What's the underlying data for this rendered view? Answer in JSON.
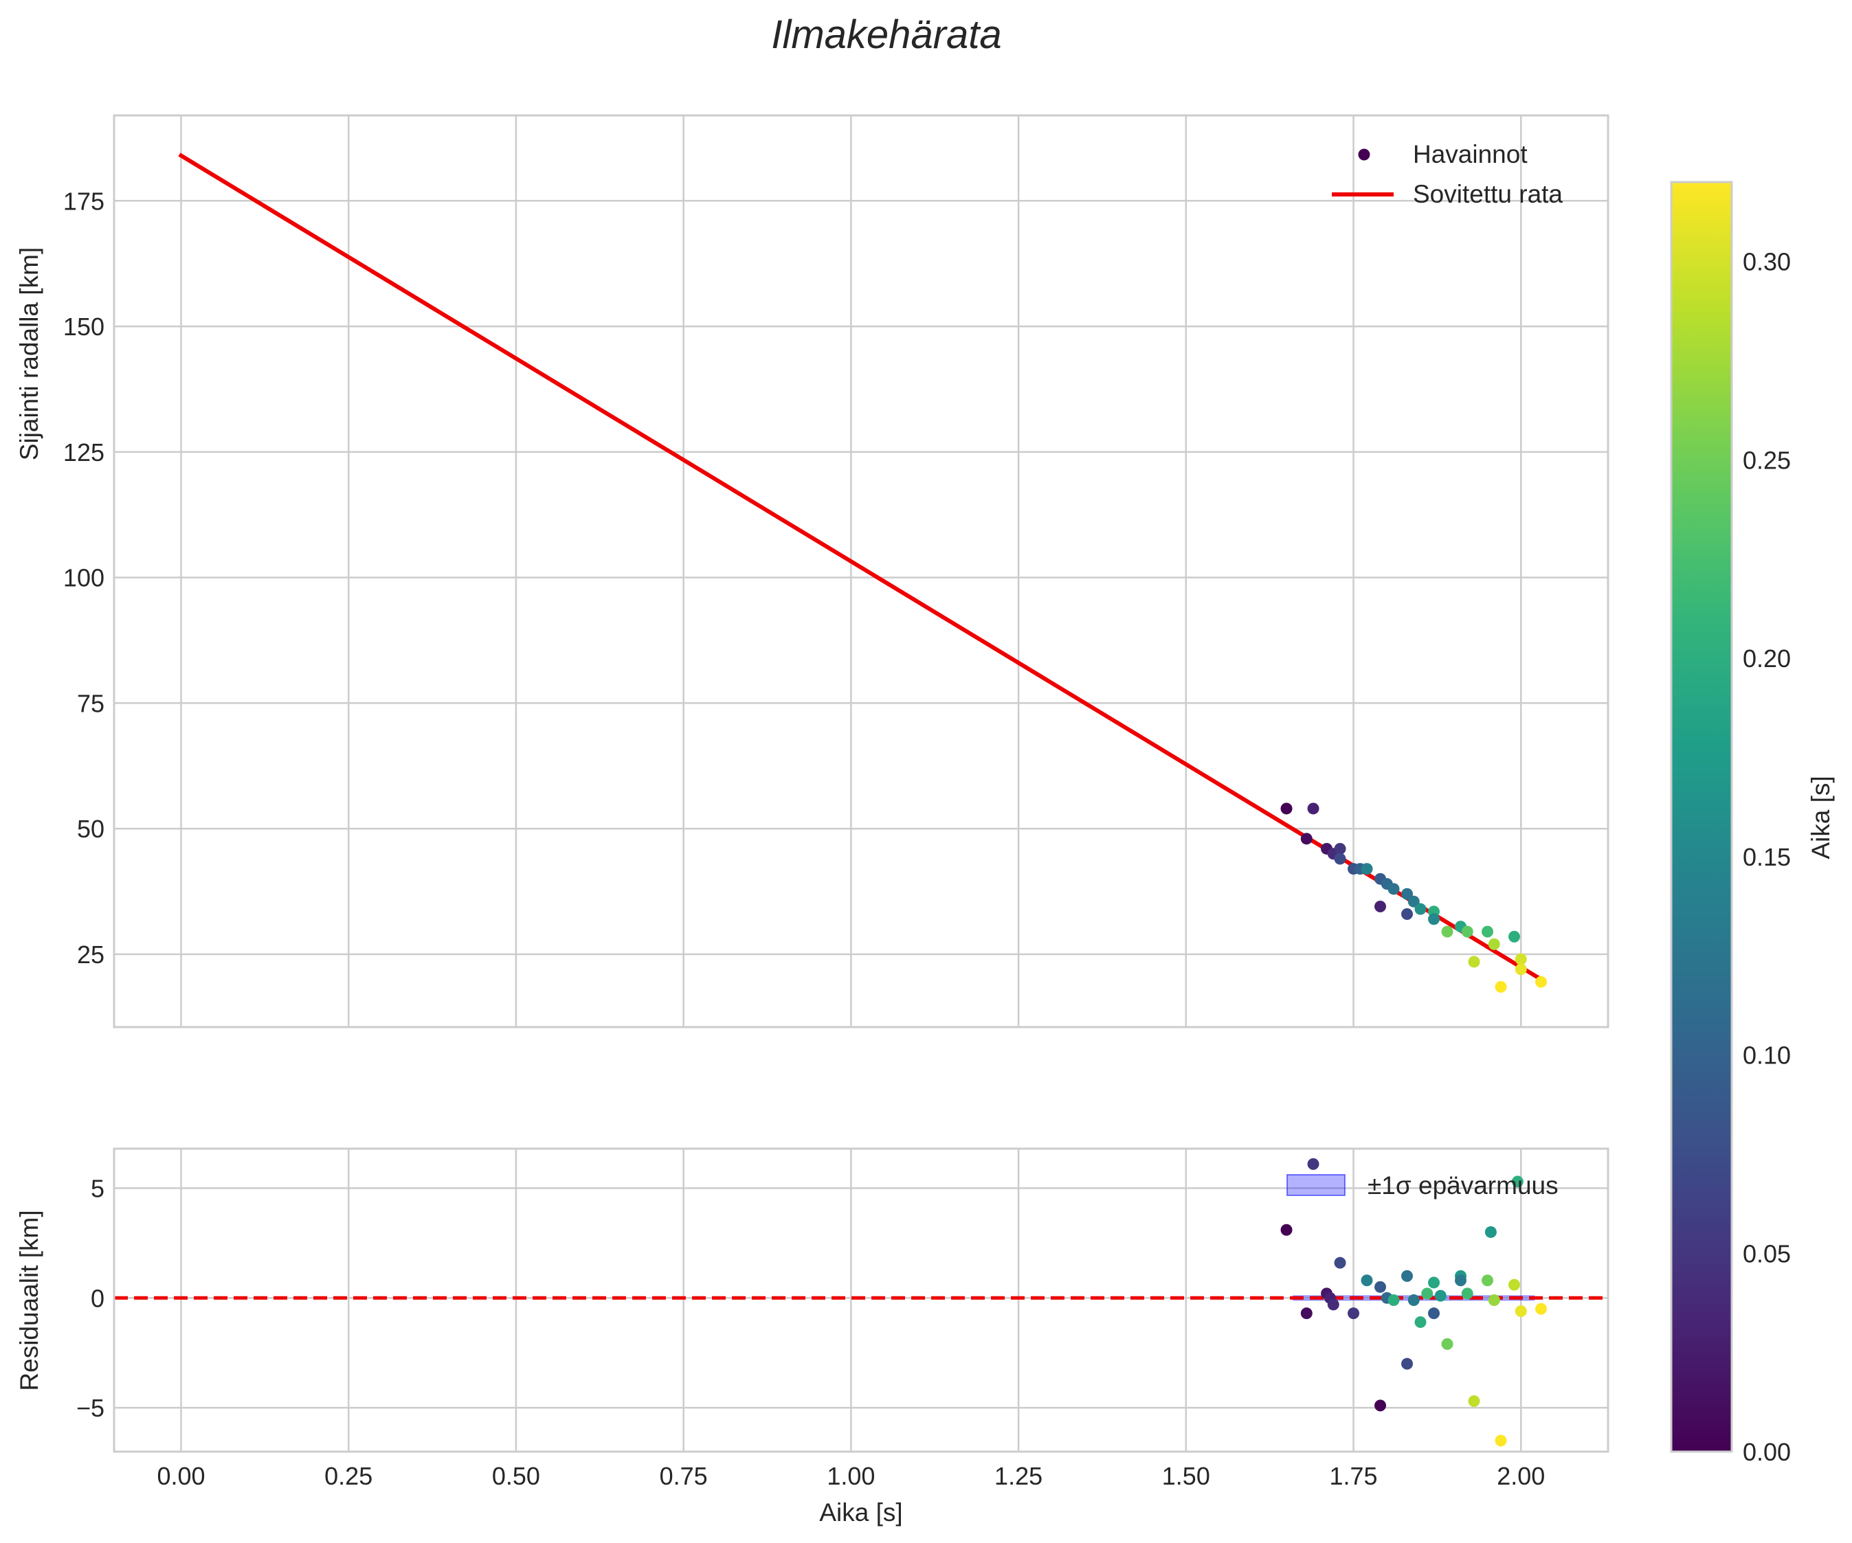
{
  "chart_data": {
    "type": "scatter",
    "title": "Ilmakehärata",
    "xlabel": "Aika [s]",
    "xlim": [
      -0.1,
      2.13
    ],
    "xticks": [
      0.0,
      0.25,
      0.5,
      0.75,
      1.0,
      1.25,
      1.5,
      1.75,
      2.0
    ],
    "xtick_labels": [
      "0.00",
      "0.25",
      "0.50",
      "0.75",
      "1.00",
      "1.25",
      "1.50",
      "1.75",
      "2.00"
    ],
    "grid": true,
    "panels": [
      {
        "name": "trajectory",
        "ylabel": "Sijainti radalla [km]",
        "ylim": [
          10.5,
          192
        ],
        "yticks": [
          25,
          50,
          75,
          100,
          125,
          150,
          175
        ],
        "ytick_labels": [
          "25",
          "50",
          "75",
          "100",
          "125",
          "150",
          "175"
        ],
        "legend": {
          "position": "top-right",
          "entries": [
            "Havainnot",
            "Sovitettu rata"
          ]
        },
        "fit_line": {
          "label": "Sovitettu rata",
          "color": "#ee0000",
          "x": [
            0.0,
            2.03
          ],
          "y": [
            184.0,
            20.0
          ]
        },
        "scatter": {
          "label": "Havainnot",
          "x": [
            1.65,
            1.68,
            1.69,
            1.71,
            1.72,
            1.73,
            1.73,
            1.75,
            1.76,
            1.77,
            1.79,
            1.79,
            1.8,
            1.81,
            1.83,
            1.83,
            1.84,
            1.85,
            1.87,
            1.87,
            1.89,
            1.91,
            1.92,
            1.93,
            1.95,
            1.96,
            1.97,
            1.99,
            2.0,
            2.0,
            2.03
          ],
          "y": [
            54,
            48,
            54,
            46,
            45,
            46,
            44,
            42,
            42,
            42,
            40,
            34.5,
            39,
            38,
            37,
            33,
            35.5,
            34,
            33.5,
            32,
            29.5,
            30.5,
            29.5,
            23.5,
            29.5,
            27,
            18.5,
            28.5,
            24,
            22,
            19.5
          ],
          "c": [
            0.0,
            0.01,
            0.03,
            0.02,
            0.04,
            0.05,
            0.07,
            0.08,
            0.1,
            0.14,
            0.09,
            0.03,
            0.11,
            0.12,
            0.12,
            0.07,
            0.13,
            0.16,
            0.2,
            0.15,
            0.25,
            0.19,
            0.24,
            0.29,
            0.22,
            0.28,
            0.32,
            0.2,
            0.3,
            0.31,
            0.32
          ]
        }
      },
      {
        "name": "residuals",
        "ylabel": "Residuaalit [km]",
        "ylim": [
          -7.0,
          6.8
        ],
        "yticks": [
          -5,
          0,
          5
        ],
        "ytick_labels": [
          "−5",
          "0",
          "5"
        ],
        "legend": {
          "position": "top-right",
          "entries": [
            "±1σ epävarmuus"
          ]
        },
        "zero_line": {
          "y": 0,
          "color": "#ee0000",
          "style": "dashed"
        },
        "band": {
          "label": "±1σ epävarmuus",
          "x": [
            1.66,
            2.02
          ],
          "y": [
            -0.1,
            0.1
          ],
          "color": "#0000ff",
          "alpha": 0.3
        },
        "scatter": {
          "x": [
            1.65,
            1.68,
            1.69,
            1.71,
            1.715,
            1.72,
            1.73,
            1.75,
            1.77,
            1.79,
            1.79,
            1.8,
            1.81,
            1.83,
            1.83,
            1.84,
            1.85,
            1.86,
            1.87,
            1.87,
            1.88,
            1.89,
            1.91,
            1.91,
            1.92,
            1.93,
            1.95,
            1.955,
            1.96,
            1.97,
            1.99,
            1.995,
            2.0,
            2.03
          ],
          "y": [
            3.1,
            -0.7,
            6.1,
            0.2,
            0.0,
            -0.3,
            1.6,
            -0.7,
            0.8,
            0.5,
            -4.9,
            0.0,
            -0.1,
            1.0,
            -3.0,
            -0.1,
            -1.1,
            0.2,
            0.7,
            -0.7,
            0.1,
            -2.1,
            1.0,
            0.8,
            0.2,
            -4.7,
            0.8,
            3.0,
            -0.1,
            -6.5,
            0.6,
            5.3,
            -0.6,
            -0.5
          ],
          "c": [
            0.0,
            0.01,
            0.05,
            0.02,
            0.03,
            0.04,
            0.07,
            0.05,
            0.14,
            0.09,
            0.0,
            0.11,
            0.2,
            0.12,
            0.07,
            0.13,
            0.2,
            0.22,
            0.19,
            0.09,
            0.17,
            0.25,
            0.17,
            0.13,
            0.22,
            0.29,
            0.25,
            0.17,
            0.27,
            0.32,
            0.29,
            0.2,
            0.31,
            0.32
          ]
        }
      }
    ],
    "colorbar": {
      "label": "Aika [s]",
      "colormap": "viridis",
      "range": [
        0.0,
        0.32
      ],
      "ticks": [
        0.0,
        0.05,
        0.1,
        0.15,
        0.2,
        0.25,
        0.3
      ],
      "tick_labels": [
        "0.00",
        "0.05",
        "0.10",
        "0.15",
        "0.20",
        "0.25",
        "0.30"
      ]
    }
  }
}
